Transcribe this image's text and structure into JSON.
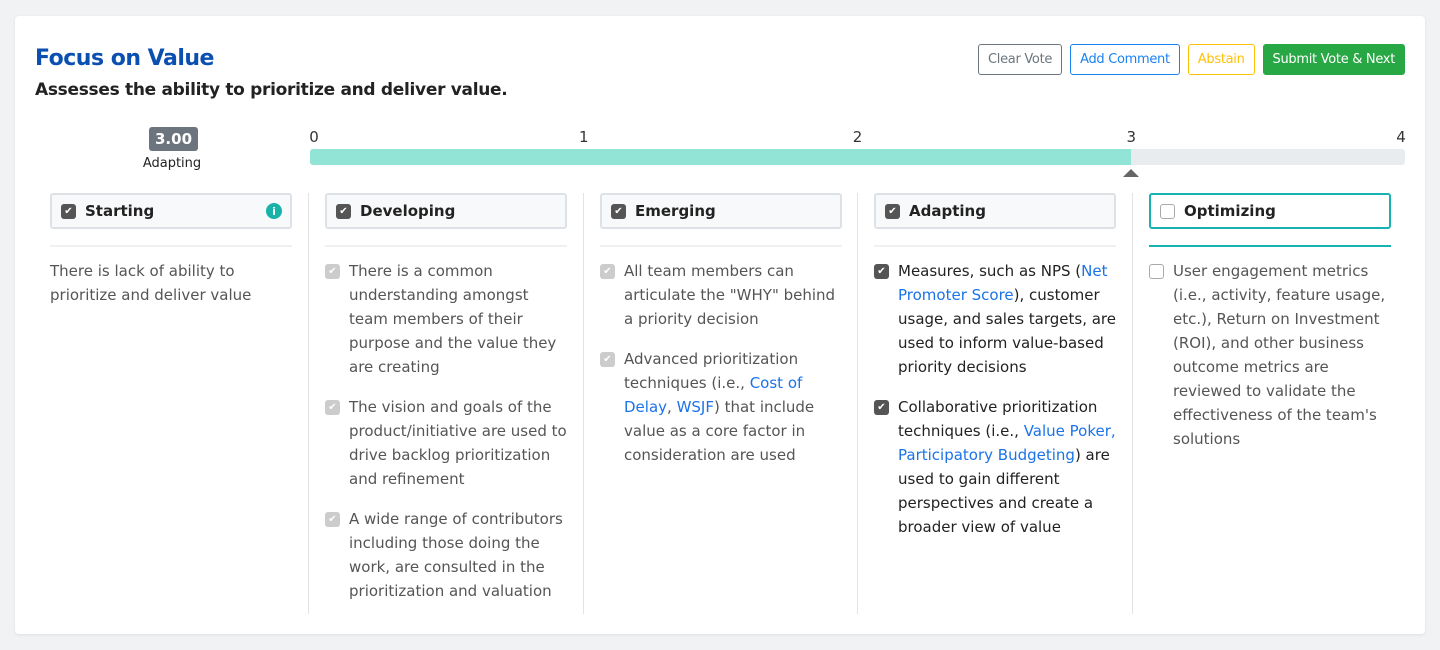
{
  "header": {
    "title": "Focus on Value",
    "subtitle": "Assesses the ability to prioritize and deliver value."
  },
  "buttons": {
    "clear": "Clear Vote",
    "comment": "Add Comment",
    "abstain": "Abstain",
    "submit": "Submit Vote & Next"
  },
  "score": {
    "value": "3.00",
    "label": "Adapting",
    "progress": 3,
    "max": 4
  },
  "scale_ticks": [
    "0",
    "1",
    "2",
    "3",
    "4"
  ],
  "colors": {
    "accent": "#17b3b3",
    "fill": "#92e4d6",
    "title": "#0b4fb0"
  },
  "levels": [
    {
      "name": "Starting",
      "checked": true,
      "info": true,
      "description": "There is lack of ability to prioritize and deliver value",
      "items": []
    },
    {
      "name": "Developing",
      "checked": true,
      "items": [
        {
          "state": "dim",
          "parts": [
            {
              "t": "There is a common understanding amongst team members of their purpose and the value they are creating"
            }
          ]
        },
        {
          "state": "dim",
          "parts": [
            {
              "t": "The vision and goals of the product/initiative are used to drive backlog prioritization and refinement"
            }
          ]
        },
        {
          "state": "dim",
          "parts": [
            {
              "t": "A wide range of contributors including those doing the work, are consulted in the prioritization and valuation"
            }
          ]
        }
      ]
    },
    {
      "name": "Emerging",
      "checked": true,
      "items": [
        {
          "state": "dim",
          "parts": [
            {
              "t": "All team members can articulate the \"WHY\" behind a priority decision"
            }
          ]
        },
        {
          "state": "dim",
          "parts": [
            {
              "t": "Advanced prioritization techniques (i.e., "
            },
            {
              "t": "Cost of Delay",
              "link": true
            },
            {
              "t": ", "
            },
            {
              "t": "WSJF",
              "link": true
            },
            {
              "t": ") that include value as a core factor in consideration are used"
            }
          ]
        }
      ]
    },
    {
      "name": "Adapting",
      "checked": true,
      "items": [
        {
          "state": "on",
          "parts": [
            {
              "t": "Measures, such as NPS ("
            },
            {
              "t": "Net Promoter Score",
              "link": true
            },
            {
              "t": "), customer usage, and sales targets, are used to inform value-based priority decisions"
            }
          ]
        },
        {
          "state": "on",
          "parts": [
            {
              "t": "Collaborative prioritization techniques (i.e., "
            },
            {
              "t": "Value Poker, Participatory Budgeting",
              "link": true
            },
            {
              "t": ") are used to gain different perspectives and create a broader view of value"
            }
          ]
        }
      ]
    },
    {
      "name": "Optimizing",
      "checked": false,
      "selected": true,
      "items": [
        {
          "state": "off",
          "parts": [
            {
              "t": "User engagement metrics (i.e., activity, feature usage, etc.), Return on Investment (ROI), and other business outcome metrics are reviewed to validate the effectiveness of the team's solutions"
            }
          ]
        }
      ]
    }
  ]
}
